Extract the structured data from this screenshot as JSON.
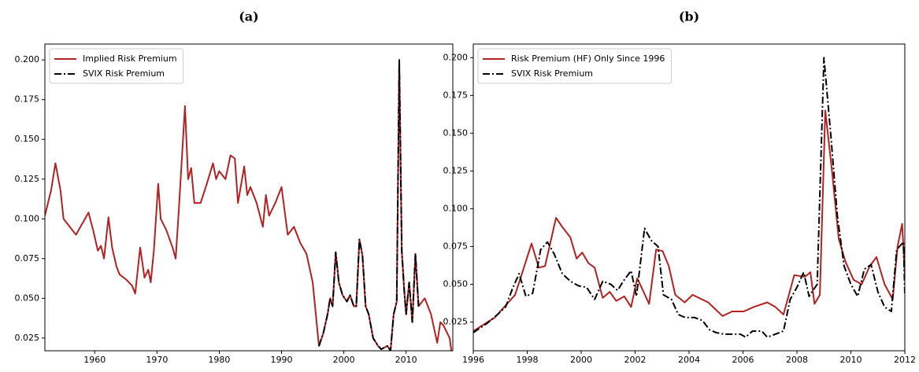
{
  "chart_data": [
    {
      "type": "line",
      "title": "(a)",
      "legend": "upper left",
      "xlim": [
        1952,
        2017.5
      ],
      "ylim": [
        0.017,
        0.21
      ],
      "xticks": [
        1960,
        1970,
        1980,
        1990,
        2000,
        2010
      ],
      "yticks": [
        0.025,
        {
          "value": 0.05,
          "label": "0.050"
        },
        0.075,
        {
          "value": 0.1,
          "label": "0.100"
        },
        0.125,
        {
          "value": 0.15,
          "label": "0.150"
        },
        0.175,
        {
          "value": 0.2,
          "label": "0.200"
        }
      ],
      "series": [
        {
          "name": "Implied Risk Premium",
          "color": "#b22222",
          "linestyle": "solid",
          "x": [
            1952,
            1953,
            1953.7,
            1954.5,
            1955,
            1956,
            1957,
            1958,
            1959,
            1959.8,
            1960.5,
            1961,
            1961.5,
            1962.2,
            1962.8,
            1963.5,
            1964,
            1965,
            1966,
            1966.5,
            1967.3,
            1968,
            1968.6,
            1969,
            1969.5,
            1970.2,
            1970.6,
            1971.5,
            1972.5,
            1973,
            1973.5,
            1974.5,
            1975,
            1975.5,
            1976,
            1977,
            1978,
            1979,
            1979.5,
            1980,
            1981,
            1981.8,
            1982.5,
            1983,
            1984,
            1984.5,
            1985,
            1986,
            1987,
            1987.5,
            1988,
            1989,
            1990,
            1991,
            1992,
            1993,
            1994,
            1995,
            1996,
            1996.7,
            1997.4,
            1997.8,
            1998.2,
            1998.7,
            1999.2,
            1999.8,
            2000.5,
            2001,
            2001.6,
            2002,
            2002.5,
            2003,
            2003.5,
            2004,
            2004.7,
            2005.5,
            2006,
            2007,
            2007.5,
            2008,
            2008.5,
            2008.9,
            2009.3,
            2009.7,
            2010,
            2010.5,
            2011,
            2011.5,
            2012,
            2013,
            2014,
            2015,
            2015.5,
            2016,
            2017,
            2017.5
          ],
          "values": [
            0.102,
            0.118,
            0.135,
            0.118,
            0.1,
            0.095,
            0.09,
            0.097,
            0.104,
            0.092,
            0.08,
            0.083,
            0.075,
            0.101,
            0.082,
            0.07,
            0.065,
            0.062,
            0.058,
            0.053,
            0.082,
            0.063,
            0.068,
            0.06,
            0.08,
            0.122,
            0.1,
            0.093,
            0.082,
            0.075,
            0.105,
            0.171,
            0.125,
            0.132,
            0.11,
            0.11,
            0.122,
            0.135,
            0.125,
            0.13,
            0.125,
            0.14,
            0.138,
            0.11,
            0.133,
            0.115,
            0.12,
            0.11,
            0.095,
            0.115,
            0.102,
            0.11,
            0.12,
            0.09,
            0.095,
            0.085,
            0.078,
            0.06,
            0.02,
            0.028,
            0.04,
            0.05,
            0.045,
            0.079,
            0.06,
            0.052,
            0.048,
            0.052,
            0.045,
            0.045,
            0.087,
            0.077,
            0.045,
            0.04,
            0.025,
            0.02,
            0.018,
            0.02,
            0.017,
            0.04,
            0.048,
            0.2,
            0.08,
            0.055,
            0.04,
            0.06,
            0.035,
            0.078,
            0.045,
            0.05,
            0.04,
            0.022,
            0.035,
            0.033,
            0.025,
            0.01
          ]
        },
        {
          "name": "SVIX Risk Premium",
          "color": "#000000",
          "linestyle": "dashdot",
          "x": [
            1996,
            1996.7,
            1997.4,
            1997.8,
            1998.2,
            1998.7,
            1999.2,
            1999.8,
            2000.5,
            2001,
            2001.6,
            2002,
            2002.5,
            2003,
            2003.5,
            2004,
            2004.7,
            2005.5,
            2006,
            2007,
            2007.5,
            2008,
            2008.5,
            2008.9,
            2009.3,
            2009.7,
            2010,
            2010.5,
            2011,
            2011.5,
            2012
          ],
          "values": [
            0.02,
            0.028,
            0.04,
            0.05,
            0.045,
            0.079,
            0.06,
            0.052,
            0.048,
            0.052,
            0.045,
            0.045,
            0.087,
            0.077,
            0.045,
            0.04,
            0.025,
            0.02,
            0.018,
            0.02,
            0.017,
            0.04,
            0.048,
            0.2,
            0.08,
            0.055,
            0.04,
            0.06,
            0.035,
            0.078,
            0.045
          ]
        }
      ]
    },
    {
      "type": "line",
      "title": "(b)",
      "legend": "upper left",
      "xlim": [
        1996,
        2012
      ],
      "ylim": [
        0.006,
        0.209
      ],
      "xticks": [
        1996,
        1998,
        2000,
        2002,
        2004,
        2006,
        2008,
        2010,
        2012
      ],
      "yticks": [
        0.025,
        {
          "value": 0.05,
          "label": "0.050"
        },
        0.075,
        {
          "value": 0.1,
          "label": "0.100"
        },
        0.125,
        {
          "value": 0.15,
          "label": "0.150"
        },
        0.175,
        {
          "value": 0.2,
          "label": "0.200"
        }
      ],
      "series": [
        {
          "name": "Risk Premium (HF) Only Since 1996",
          "color": "#b22222",
          "linestyle": "solid",
          "x": [
            1996,
            1996.8,
            1997.55,
            1997.93,
            1998.16,
            1998.43,
            1998.66,
            1999.07,
            1999.3,
            1999.6,
            1999.83,
            2000.04,
            2000.27,
            2000.5,
            2000.8,
            2001.06,
            2001.3,
            2001.6,
            2001.85,
            2002.08,
            2002.29,
            2002.52,
            2002.78,
            2003.02,
            2003.25,
            2003.49,
            2003.84,
            2004.13,
            2004.71,
            2005.24,
            2005.6,
            2006.03,
            2006.4,
            2006.9,
            2007.2,
            2007.5,
            2007.9,
            2008.3,
            2008.5,
            2008.65,
            2008.85,
            2009.05,
            2009.3,
            2009.55,
            2009.8,
            2010.1,
            2010.4,
            2010.7,
            2010.95,
            2011.25,
            2011.55,
            2011.73,
            2011.9,
            2012
          ],
          "values": [
            0.019,
            0.028,
            0.043,
            0.064,
            0.077,
            0.061,
            0.062,
            0.094,
            0.088,
            0.081,
            0.067,
            0.071,
            0.064,
            0.061,
            0.041,
            0.045,
            0.039,
            0.042,
            0.035,
            0.054,
            0.046,
            0.037,
            0.073,
            0.072,
            0.062,
            0.043,
            0.038,
            0.043,
            0.038,
            0.029,
            0.032,
            0.032,
            0.035,
            0.038,
            0.035,
            0.03,
            0.056,
            0.055,
            0.058,
            0.037,
            0.043,
            0.165,
            0.125,
            0.08,
            0.065,
            0.053,
            0.05,
            0.062,
            0.068,
            0.05,
            0.04,
            0.075,
            0.09,
            0.057
          ]
        },
        {
          "name": "SVIX Risk Premium",
          "color": "#000000",
          "linestyle": "dashdot",
          "x": [
            1996,
            1996.5,
            1996.9,
            1997.2,
            1997.45,
            1997.7,
            1997.95,
            1998.2,
            1998.5,
            1998.75,
            1999,
            1999.3,
            1999.6,
            1999.9,
            2000.2,
            2000.5,
            2000.8,
            2001.1,
            2001.35,
            2001.6,
            2001.85,
            2002.05,
            2002.35,
            2002.6,
            2002.85,
            2003.05,
            2003.35,
            2003.6,
            2003.85,
            2004.2,
            2004.5,
            2004.75,
            2005,
            2005.3,
            2005.6,
            2005.9,
            2006.1,
            2006.35,
            2006.7,
            2006.9,
            2007.2,
            2007.5,
            2007.75,
            2008,
            2008.25,
            2008.45,
            2008.75,
            2009,
            2009.25,
            2009.5,
            2009.75,
            2010,
            2010.25,
            2010.5,
            2010.75,
            2011,
            2011.25,
            2011.5,
            2011.7,
            2011.95,
            2012
          ],
          "values": [
            0.018,
            0.024,
            0.03,
            0.035,
            0.047,
            0.057,
            0.042,
            0.044,
            0.073,
            0.078,
            0.07,
            0.057,
            0.052,
            0.049,
            0.048,
            0.04,
            0.052,
            0.05,
            0.046,
            0.053,
            0.059,
            0.042,
            0.087,
            0.079,
            0.075,
            0.043,
            0.04,
            0.03,
            0.028,
            0.028,
            0.026,
            0.02,
            0.018,
            0.017,
            0.017,
            0.017,
            0.015,
            0.019,
            0.019,
            0.015,
            0.017,
            0.019,
            0.04,
            0.048,
            0.058,
            0.042,
            0.05,
            0.2,
            0.15,
            0.095,
            0.062,
            0.05,
            0.042,
            0.06,
            0.063,
            0.045,
            0.035,
            0.032,
            0.073,
            0.078,
            0.044
          ]
        }
      ]
    }
  ]
}
